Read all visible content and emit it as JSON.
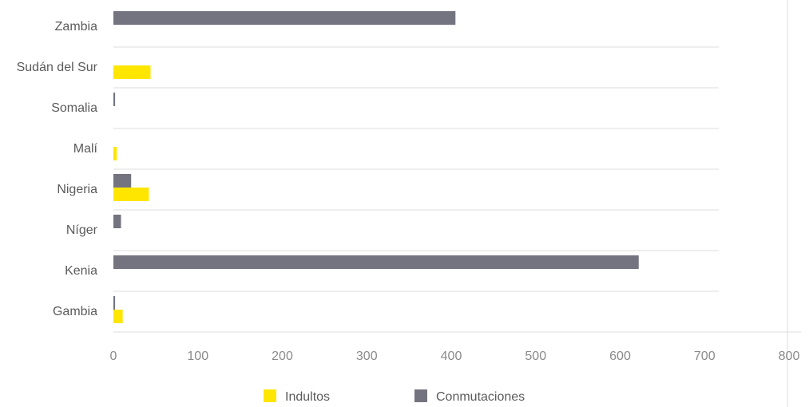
{
  "chart_data": {
    "type": "bar",
    "orientation": "horizontal",
    "categories": [
      "Zambia",
      "Sudán del Sur",
      "Somalia",
      "Malí",
      "Nigeria",
      "Níger",
      "Kenia",
      "Gambia"
    ],
    "series": [
      {
        "name": "Indultos",
        "values": [
          0,
          44,
          0,
          4,
          42,
          0,
          0,
          11
        ]
      },
      {
        "name": "Conmutaciones",
        "values": [
          405,
          0,
          2,
          0,
          21,
          9,
          622,
          2
        ]
      }
    ],
    "xlim": [
      0,
      800
    ],
    "xticks": [
      "0",
      "100",
      "200",
      "300",
      "400",
      "500",
      "600",
      "700",
      "800"
    ],
    "legend_position": "bottom",
    "colors": {
      "Indultos": "#ffe600",
      "Conmutaciones": "#747480"
    },
    "grid": true
  }
}
